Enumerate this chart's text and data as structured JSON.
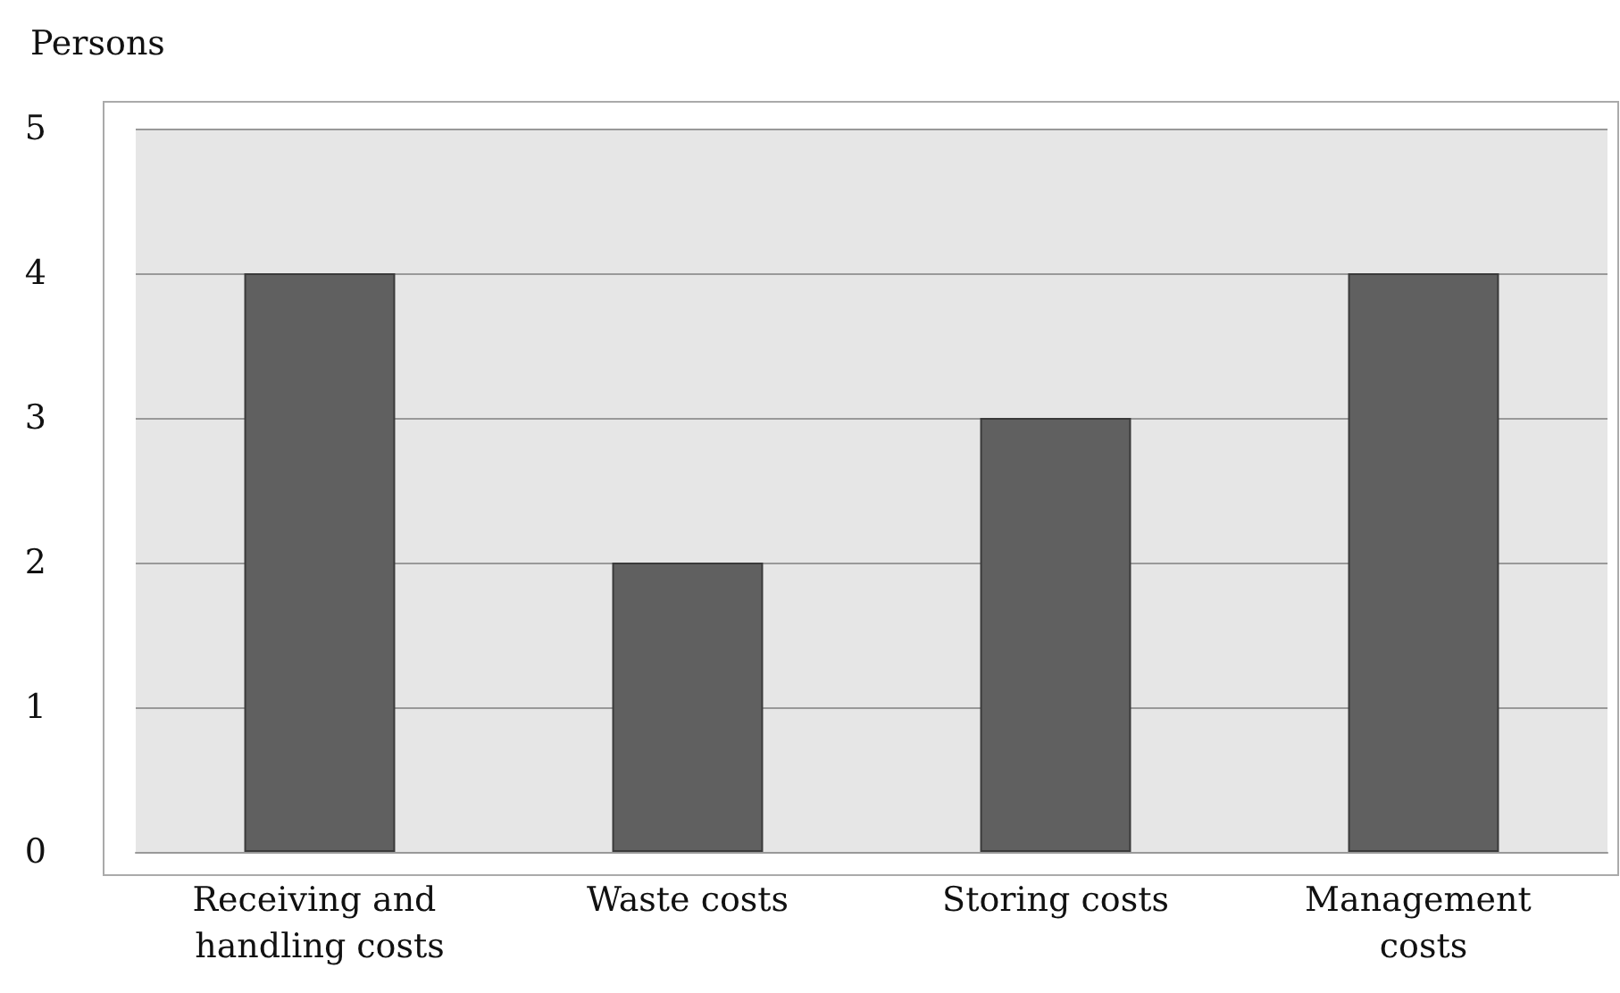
{
  "chart_data": {
    "type": "bar",
    "ylabel": "Persons",
    "categories": [
      "Receiving and handling costs",
      "Waste costs",
      "Storing costs",
      "Management costs"
    ],
    "values": [
      4,
      2,
      3,
      4
    ],
    "color": "#606060",
    "ylim": [
      0,
      5
    ],
    "yticks": [
      0,
      1,
      2,
      3,
      4,
      5
    ],
    "grid": "y"
  }
}
